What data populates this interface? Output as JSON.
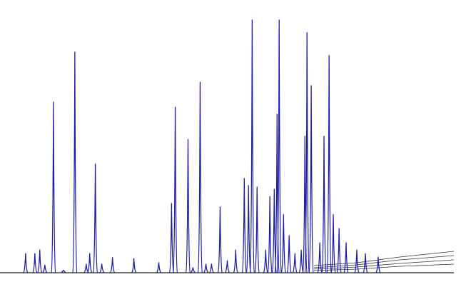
{
  "chart_data": {
    "type": "peaks",
    "color": "#1c1ca8",
    "baseline_color": "#222222",
    "xlim": [
      6.1,
      32
    ],
    "ylim": [
      0,
      100
    ],
    "x": [
      7.56,
      8.09,
      8.37,
      8.66,
      9.15,
      9.72,
      10.37,
      11.02,
      11.22,
      11.54,
      11.91,
      12.52,
      13.74,
      15.16,
      15.89,
      16.1,
      16.83,
      17.11,
      17.52,
      17.85,
      18.17,
      18.66,
      19.07,
      19.55,
      20.04,
      20.28,
      20.49,
      20.77,
      21.26,
      21.5,
      21.75,
      21.91,
      22.03,
      22.28,
      22.6,
      22.93,
      23.29,
      23.5,
      23.62,
      23.86,
      24.35,
      24.59,
      24.88,
      25.12,
      25.45,
      25.85,
      26.46,
      26.95,
      27.68
    ],
    "values": [
      7.6,
      7.6,
      9,
      3,
      67.5,
      1,
      87.3,
      3.4,
      7.6,
      43,
      3.4,
      6,
      5.6,
      4,
      27.4,
      65.5,
      52.8,
      2,
      75.4,
      3.4,
      3.4,
      26,
      4.8,
      9,
      37.3,
      34.5,
      100,
      33.9,
      9,
      30.2,
      33,
      62.7,
      100,
      23,
      14.7,
      7.6,
      9,
      54,
      95,
      74,
      11.9,
      54,
      85.9,
      23,
      17.5,
      11.9,
      9,
      7.6,
      6.2
    ]
  }
}
